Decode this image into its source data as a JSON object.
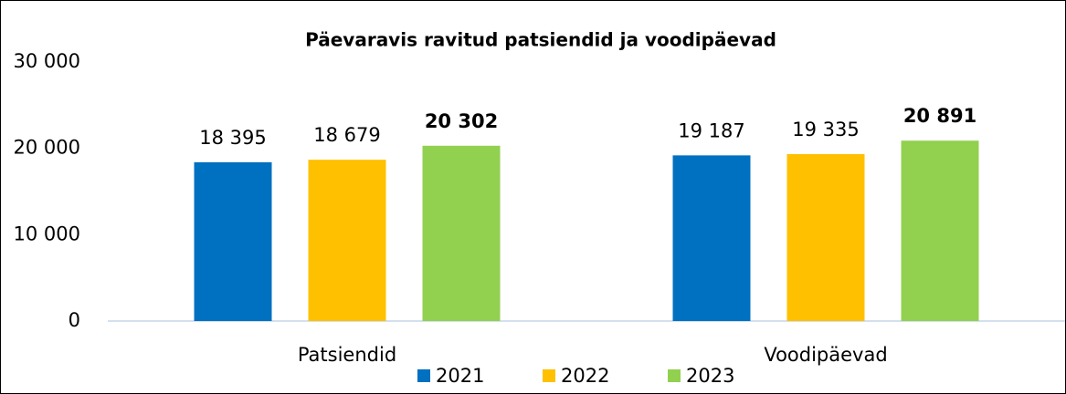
{
  "chart_data": {
    "type": "bar",
    "title": "Päevaravis ravitud patsiendid ja voodipäevad",
    "categories": [
      "Patsiendid",
      "Voodipäevad"
    ],
    "series": [
      {
        "name": "2021",
        "color": "#0070c0",
        "values": [
          18395,
          19187
        ],
        "value_labels": [
          "18 395",
          "19 187"
        ]
      },
      {
        "name": "2022",
        "color": "#ffc000",
        "values": [
          18679,
          19335
        ],
        "value_labels": [
          "18 679",
          "19 335"
        ]
      },
      {
        "name": "2023",
        "color": "#92d050",
        "values": [
          20302,
          20891
        ],
        "value_labels": [
          "20 302",
          "20 891"
        ]
      }
    ],
    "ylim": [
      0,
      30000
    ],
    "yticks": [
      {
        "value": 0,
        "label": "0"
      },
      {
        "value": 10000,
        "label": "10 000"
      },
      {
        "value": 20000,
        "label": "20 000"
      },
      {
        "value": 30000,
        "label": "30 000"
      }
    ],
    "grid": false
  }
}
